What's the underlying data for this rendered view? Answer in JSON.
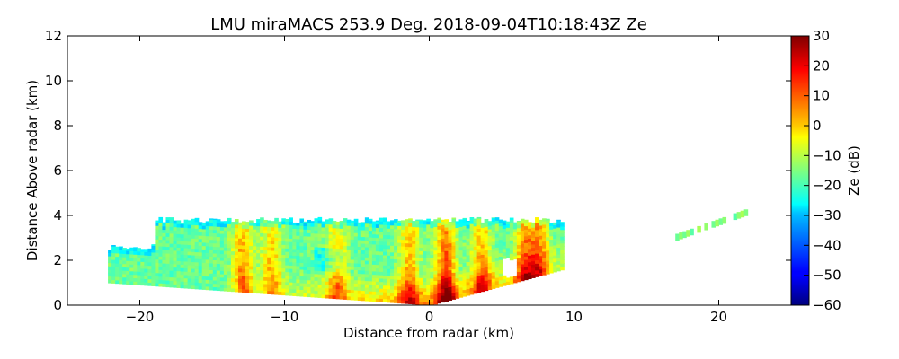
{
  "chart_data": {
    "type": "heatmap",
    "title": "LMU miraMACS 253.9 Deg. 2018-09-04T10:18:43Z  Ze",
    "xlabel": "Distance from radar (km)",
    "ylabel": "Distance Above radar  (km)",
    "xlim": [
      -25,
      25
    ],
    "ylim": [
      0,
      12
    ],
    "x_ticks": [
      -20,
      -10,
      0,
      10,
      20
    ],
    "y_ticks": [
      0,
      2,
      4,
      6,
      8,
      10,
      12
    ],
    "colorbar": {
      "label": "Ze (dB)",
      "range": [
        -60,
        30
      ],
      "ticks": [
        -60,
        -50,
        -40,
        -30,
        -20,
        -10,
        0,
        10,
        20,
        30
      ],
      "colormap": "jet"
    },
    "echo_region": {
      "description": "cloud reflectivity field",
      "x_range": [
        -22.2,
        9.2
      ],
      "top_height_km": 3.9,
      "bottom_left_height_km": 1.0,
      "bottom_at_radar_km": 0.0,
      "right_edge_bottom_km": 1.6
    },
    "bright_columns": [
      {
        "x": -13,
        "ze": 10
      },
      {
        "x": -11,
        "ze": 5
      },
      {
        "x": -6.5,
        "ze": 3
      },
      {
        "x": -1.5,
        "ze": 8
      },
      {
        "x": 1,
        "ze": 18
      },
      {
        "x": 3.5,
        "ze": 8
      },
      {
        "x": 6.5,
        "ze": 12
      },
      {
        "x": 7.5,
        "ze": 10
      }
    ],
    "fragments": [
      {
        "x_start": 17,
        "x_end": 21.8,
        "height_km_start": 3.0,
        "height_km_end": 4.1,
        "ze": -15
      }
    ]
  },
  "colors": {
    "jet": [
      "#00007f",
      "#0000ff",
      "#007fff",
      "#00ffff",
      "#7fff7f",
      "#ffff00",
      "#ff7f00",
      "#ff0000",
      "#7f0000"
    ]
  }
}
